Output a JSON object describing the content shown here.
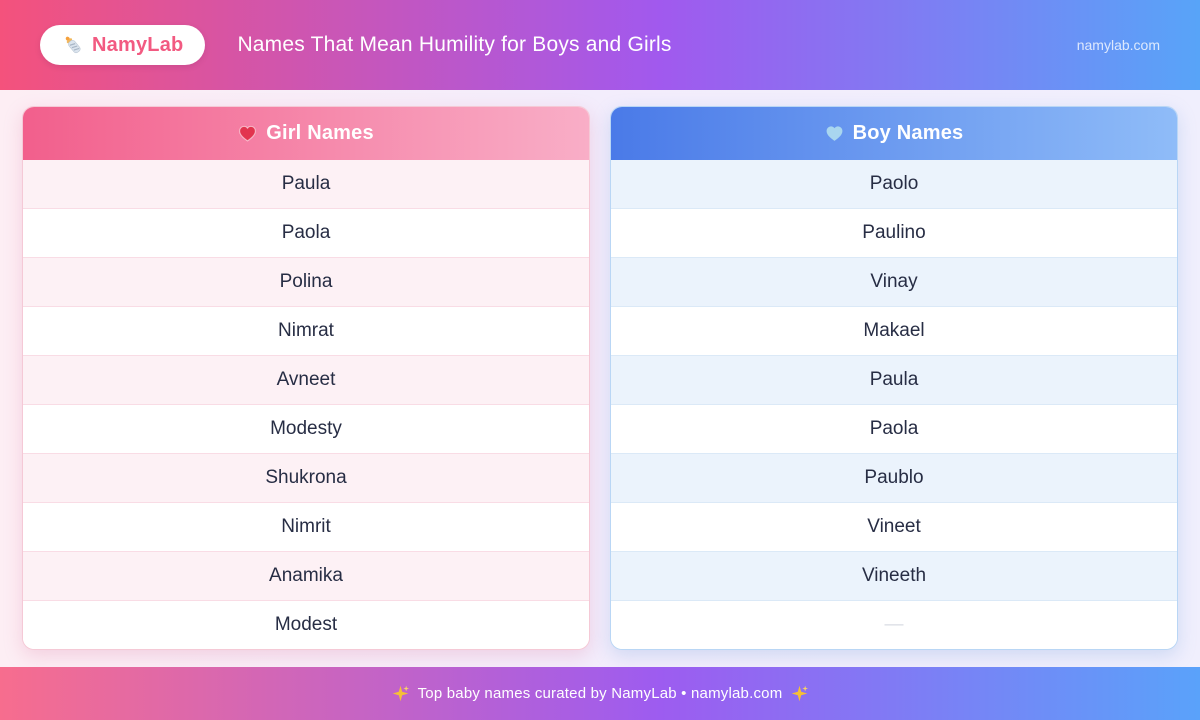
{
  "header": {
    "logo_text": "NamyLab",
    "logo_icon": "baby-bottle-icon",
    "title": "Names That Mean Humility for Boys and Girls",
    "site": "namylab.com"
  },
  "tables": {
    "girls": {
      "title": "Girl Names",
      "heart_icon": "red-heart-icon",
      "heart_color": "#e2344f",
      "accent_color": "#f25f8c",
      "names": [
        "Paula",
        "Paola",
        "Polina",
        "Nimrat",
        "Avneet",
        "Modesty",
        "Shukrona",
        "Nimrit",
        "Anamika",
        "Modest"
      ]
    },
    "boys": {
      "title": "Boy Names",
      "heart_icon": "blue-heart-icon",
      "heart_color": "#a9d6ef",
      "accent_color": "#4a7ae8",
      "names": [
        "Paolo",
        "Paulino",
        "Vinay",
        "Makael",
        "Paula",
        "Paola",
        "Paublo",
        "Vineet",
        "Vineeth",
        "—"
      ]
    }
  },
  "footer": {
    "text": "Top baby names curated by NamyLab • namylab.com",
    "sparkle_color": "#f6bf36"
  },
  "colors": {
    "header_gradient": [
      "#f4527c",
      "#a159ee",
      "#58a4f8"
    ],
    "page_background": [
      "#fdeef4",
      "#f3edfc",
      "#f0effd"
    ],
    "girl_row_tint": "#fdf1f5",
    "boy_row_tint": "#ebf3fc",
    "name_text": "#272d44"
  }
}
